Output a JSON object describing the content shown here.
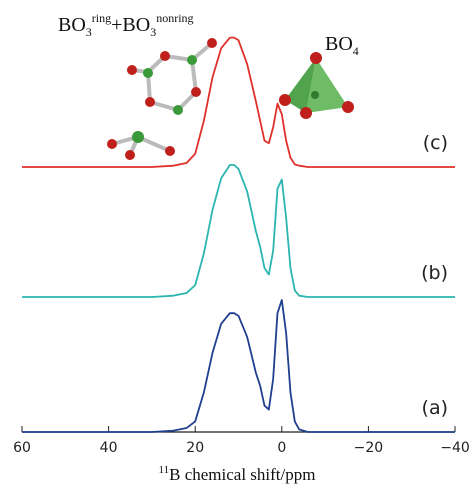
{
  "chart_data": {
    "type": "line",
    "annotations": [
      {
        "parts": [
          "BO",
          "3",
          "ring",
          "+BO",
          "3",
          "nonring"
        ]
      },
      {
        "parts": [
          "BO",
          "4"
        ]
      }
    ],
    "xlabel": {
      "sup": "11",
      "text": "B chemical shift/ppm"
    },
    "xlim": [
      60,
      -40
    ],
    "xticks": [
      60,
      40,
      20,
      0,
      {
        "value": -20,
        "label": "−20"
      },
      {
        "value": -40,
        "label": "−40"
      }
    ],
    "x": [
      60,
      50,
      40,
      30,
      25,
      22,
      20,
      18,
      16,
      14,
      12,
      11,
      10,
      8,
      6,
      5,
      4,
      3,
      2,
      1,
      0,
      -1,
      -2,
      -3,
      -4,
      -6,
      -10,
      -20,
      -30,
      -40
    ],
    "series": [
      {
        "name": "(a)",
        "color": "#1f3f8f",
        "values": [
          0,
          0,
          0,
          0,
          0.01,
          0.03,
          0.08,
          0.3,
          0.6,
          0.82,
          0.9,
          0.9,
          0.88,
          0.72,
          0.45,
          0.35,
          0.2,
          0.17,
          0.4,
          0.9,
          1.0,
          0.75,
          0.3,
          0.08,
          0.02,
          0,
          0,
          0,
          0,
          0
        ]
      },
      {
        "name": "(b)",
        "color": "#2ab5b0",
        "values": [
          0,
          0,
          0,
          0,
          0.01,
          0.03,
          0.09,
          0.33,
          0.66,
          0.9,
          1.0,
          1.0,
          0.97,
          0.8,
          0.5,
          0.38,
          0.22,
          0.17,
          0.35,
          0.82,
          0.89,
          0.6,
          0.22,
          0.05,
          0.01,
          0,
          0,
          0,
          0,
          0
        ]
      },
      {
        "name": "(c)",
        "color": "#e0302a",
        "values": [
          0,
          0,
          0,
          0,
          0.01,
          0.03,
          0.1,
          0.35,
          0.68,
          0.9,
          0.98,
          0.98,
          0.96,
          0.78,
          0.5,
          0.35,
          0.2,
          0.18,
          0.3,
          0.48,
          0.4,
          0.2,
          0.07,
          0.02,
          0.01,
          0,
          0,
          0,
          0,
          0
        ]
      }
    ]
  }
}
